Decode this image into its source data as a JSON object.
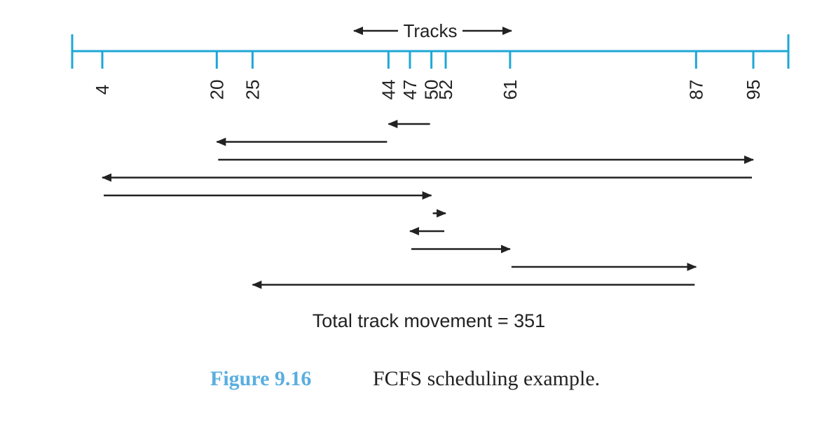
{
  "axis": {
    "label": "Tracks",
    "ticks": [
      4,
      20,
      25,
      44,
      47,
      50,
      52,
      61,
      87,
      95
    ]
  },
  "head_sequence": [
    50,
    44,
    20,
    95,
    4,
    50,
    52,
    47,
    61,
    87,
    25
  ],
  "total": "Total track movement = 351",
  "caption": {
    "number": "Figure 9.16",
    "text": "FCFS scheduling example."
  }
}
